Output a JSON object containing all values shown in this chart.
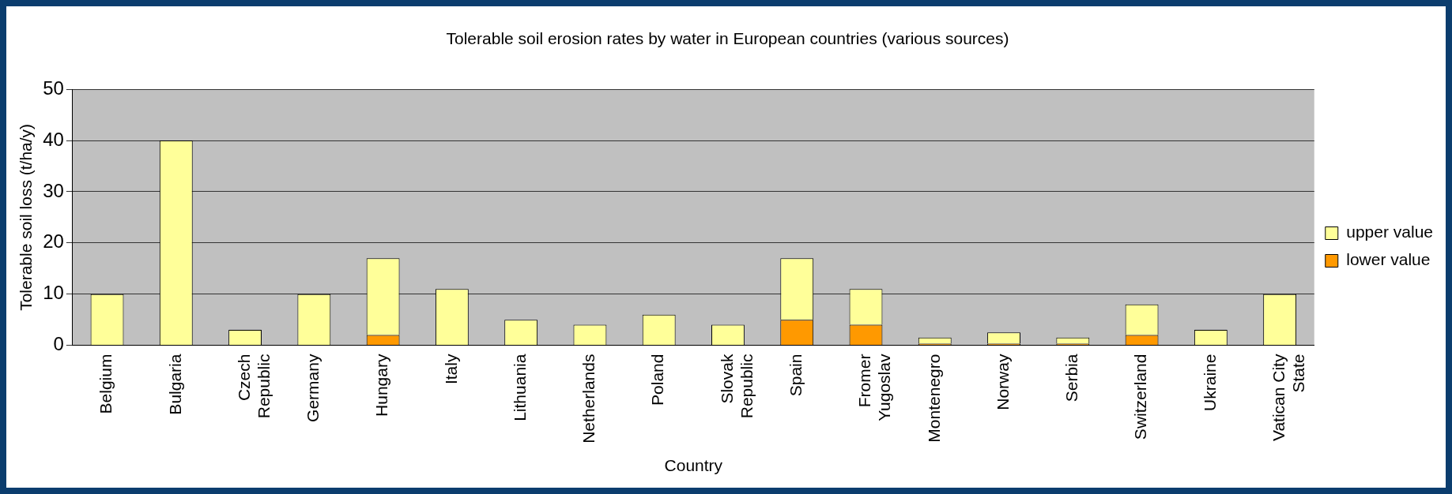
{
  "chart_data": {
    "type": "bar",
    "title": "Tolerable soil erosion rates by water in European countries (various sources)",
    "xlabel": "Country",
    "ylabel": "Tolerable soil loss (t/ha/y)",
    "categories": [
      "Belgium",
      "Bulgaria",
      "Czech Republic",
      "Germany",
      "Hungary",
      "Italy",
      "Lithuania",
      "Netherlands",
      "Poland",
      "Slovak Republic",
      "Spain",
      "Fromer Yugoslav",
      "Montenegro",
      "Norway",
      "Serbia",
      "Switzerland",
      "Ukraine",
      "Vatican City State"
    ],
    "stacked": true,
    "series": [
      {
        "name": "lower value",
        "color": "#ff9900",
        "values": [
          null,
          null,
          null,
          null,
          2,
          null,
          null,
          null,
          null,
          null,
          5,
          4,
          0.3,
          0.3,
          0.3,
          2,
          null,
          null
        ]
      },
      {
        "name": "upper value",
        "color": "#ffff99",
        "values": [
          10,
          40,
          3,
          10,
          15,
          11,
          5,
          4,
          6,
          4,
          12,
          7,
          1.2,
          2.2,
          1.2,
          6,
          3,
          10
        ]
      }
    ],
    "ylim": [
      0,
      50
    ],
    "yticks": [
      0,
      10,
      20,
      30,
      40,
      50
    ],
    "grid": "y",
    "legend": "right"
  }
}
